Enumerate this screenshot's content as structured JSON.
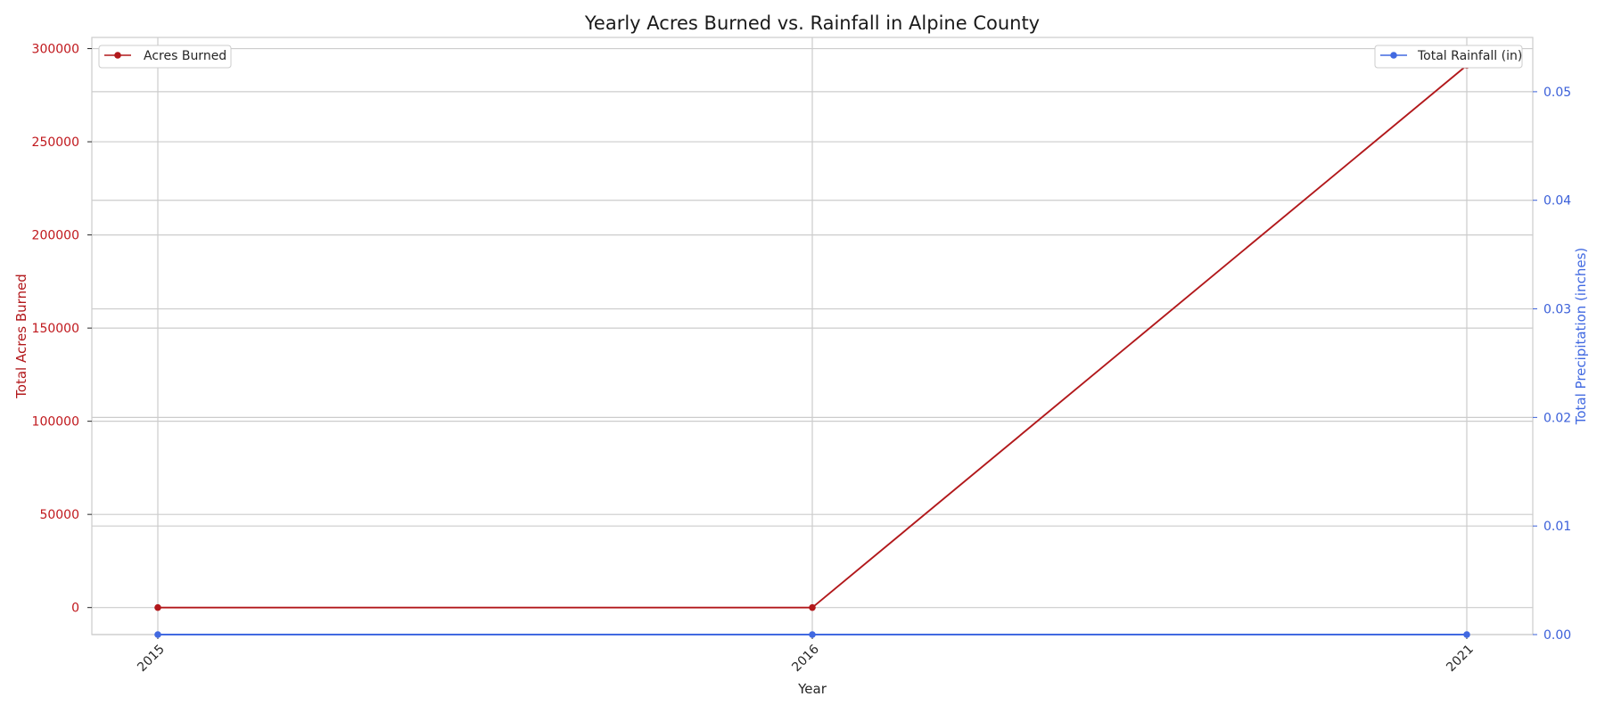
{
  "chart_data": {
    "type": "line",
    "title": "Yearly Acres Burned vs. Rainfall in Alpine County",
    "xlabel": "Year",
    "categories": [
      "2015",
      "2016",
      "2021"
    ],
    "y_left": {
      "label": "Total Acres Burned",
      "ylim": [
        -14500,
        306000
      ],
      "ticks": [
        0,
        50000,
        100000,
        150000,
        200000,
        250000,
        300000
      ],
      "color": "#b2181b"
    },
    "y_right": {
      "label": "Total Precipitation (inches)",
      "ylim": [
        0.0,
        0.055
      ],
      "ticks": [
        "0.00",
        "0.01",
        "0.02",
        "0.03",
        "0.04",
        "0.05"
      ],
      "color": "#4169e1"
    },
    "series": [
      {
        "name": "Acres Burned",
        "axis": "left",
        "color": "#b2181b",
        "values": [
          0,
          0,
          291000
        ]
      },
      {
        "name": "Total Rainfall (in)",
        "axis": "right",
        "color": "#4169e1",
        "values": [
          0.0,
          0.0,
          0.0
        ]
      }
    ],
    "grid": true,
    "legend": [
      "top-left",
      "top-right"
    ]
  }
}
